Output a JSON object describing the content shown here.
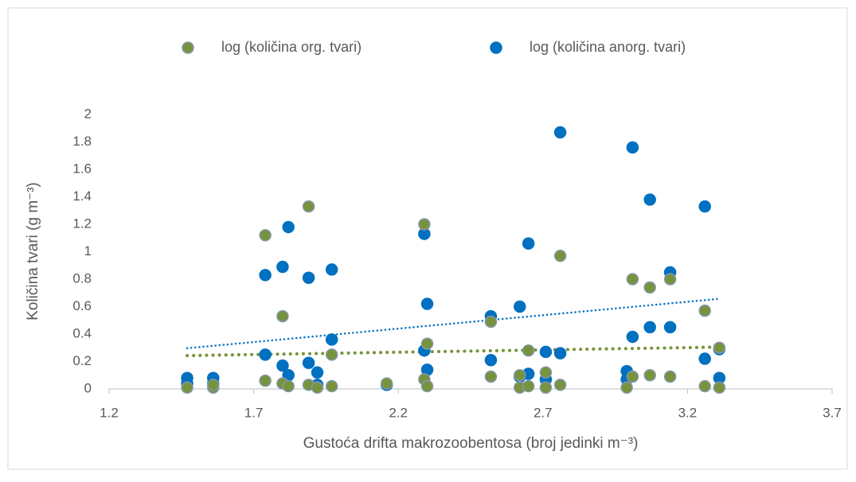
{
  "chart_data": {
    "type": "scatter",
    "xlabel": "Gustoća drifta makrozoobentosa (broj jedinki m⁻³)",
    "ylabel": "Količina tvari (g m⁻³)",
    "xlim": [
      1.2,
      3.7
    ],
    "xticks": [
      1.2,
      1.7,
      2.2,
      2.7,
      3.2,
      3.7
    ],
    "ylim": [
      0,
      2
    ],
    "yticks": [
      0,
      0.2,
      0.4,
      0.6,
      0.8,
      1,
      1.2,
      1.4,
      1.6,
      1.8,
      2
    ],
    "legend": "top",
    "trendline": true,
    "series": [
      {
        "name": "log (količina org. tvari)",
        "color": "#77933c",
        "x": [
          1.47,
          1.56,
          1.56,
          1.74,
          1.74,
          1.8,
          1.8,
          1.82,
          1.89,
          1.89,
          1.92,
          1.97,
          1.97,
          2.16,
          2.29,
          2.29,
          2.3,
          2.3,
          2.52,
          2.52,
          2.62,
          2.62,
          2.65,
          2.65,
          2.71,
          2.71,
          2.76,
          2.76,
          2.99,
          3.01,
          3.01,
          3.07,
          3.07,
          3.14,
          3.14,
          3.26,
          3.26,
          3.31,
          3.31
        ],
        "values": [
          0.01,
          0.01,
          0.03,
          1.12,
          0.06,
          0.53,
          0.04,
          0.02,
          1.33,
          0.03,
          0.01,
          0.25,
          0.02,
          0.04,
          1.2,
          0.07,
          0.33,
          0.02,
          0.49,
          0.09,
          0.1,
          0.01,
          0.28,
          0.02,
          0.12,
          0.01,
          0.97,
          0.03,
          0.01,
          0.8,
          0.09,
          0.74,
          0.1,
          0.8,
          0.09,
          0.57,
          0.02,
          0.3,
          0.01
        ]
      },
      {
        "name": "log (količina anorg. tvari)",
        "color": "#0070c0",
        "x": [
          1.47,
          1.47,
          1.56,
          1.56,
          1.74,
          1.74,
          1.8,
          1.8,
          1.82,
          1.82,
          1.89,
          1.89,
          1.92,
          1.92,
          1.97,
          1.97,
          2.16,
          2.29,
          2.29,
          2.3,
          2.3,
          2.52,
          2.52,
          2.62,
          2.62,
          2.65,
          2.65,
          2.71,
          2.71,
          2.76,
          2.76,
          2.99,
          2.99,
          3.01,
          3.01,
          3.07,
          3.07,
          3.14,
          3.14,
          3.26,
          3.26,
          3.31,
          3.31
        ],
        "values": [
          0.08,
          0.04,
          0.08,
          0.04,
          0.83,
          0.25,
          0.89,
          0.17,
          1.18,
          0.1,
          0.81,
          0.19,
          0.12,
          0.03,
          0.87,
          0.36,
          0.03,
          1.13,
          0.28,
          0.62,
          0.14,
          0.53,
          0.21,
          0.6,
          0.09,
          1.06,
          0.11,
          0.27,
          0.07,
          1.87,
          0.26,
          0.13,
          0.07,
          1.76,
          0.38,
          1.38,
          0.45,
          0.85,
          0.45,
          1.33,
          0.22,
          0.29,
          0.08
        ]
      }
    ]
  }
}
